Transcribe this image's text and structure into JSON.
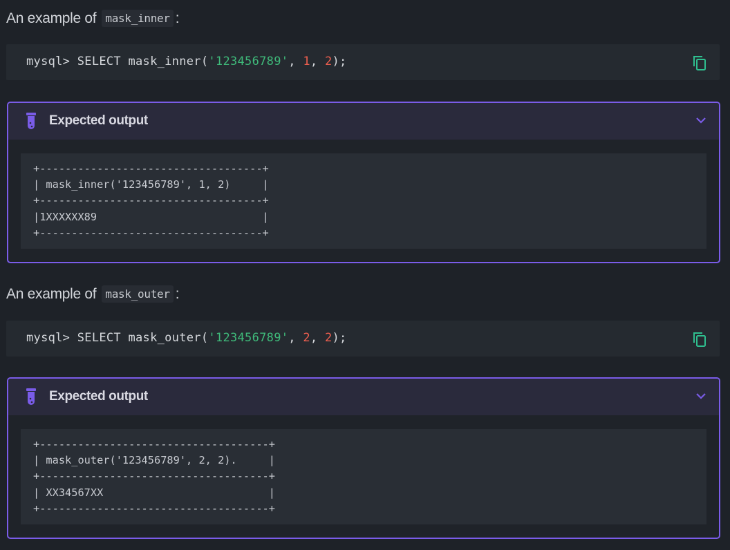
{
  "examples": [
    {
      "heading_prefix": "An example of",
      "heading_code": "mask_inner",
      "heading_suffix": ":",
      "code": {
        "prompt": "mysql> SELECT mask_inner(",
        "str": "'123456789'",
        "sep1": ", ",
        "n1": "1",
        "sep2": ", ",
        "n2": "2",
        "end": ");"
      },
      "copy_icon": "copy-icon",
      "callout_title": "Expected output",
      "output": "+-----------------------------------+\n| mask_inner('123456789', 1, 2)     |\n+-----------------------------------+\n|1XXXXXX89                          |\n+-----------------------------------+"
    },
    {
      "heading_prefix": "An example of",
      "heading_code": "mask_outer",
      "heading_suffix": ":",
      "code": {
        "prompt": "mysql> SELECT mask_outer(",
        "str": "'123456789'",
        "sep1": ", ",
        "n1": "2",
        "sep2": ", ",
        "n2": "2",
        "end": ");"
      },
      "copy_icon": "copy-icon",
      "callout_title": "Expected output",
      "output": "+------------------------------------+\n| mask_outer('123456789', 2, 2).     |\n+------------------------------------+\n| XX34567XX                          |\n+------------------------------------+"
    }
  ],
  "colors": {
    "accent": "#7a5ce8",
    "string": "#3fba7a",
    "number": "#ef5f4f",
    "copy": "#2fbf8f"
  }
}
